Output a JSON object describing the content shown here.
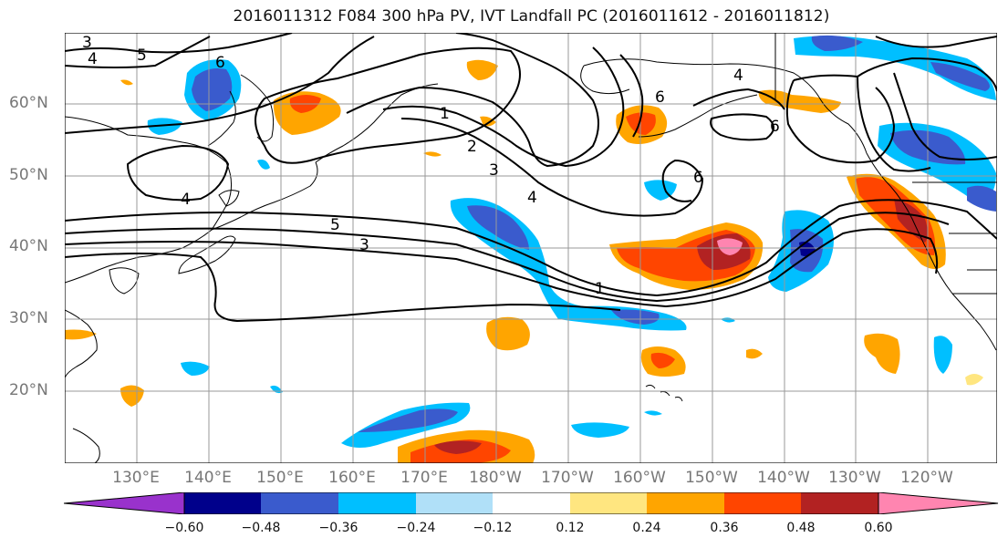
{
  "title": "2016011312 F084 300 hPa PV, IVT Landfall PC (2016011612 - 2016011812)",
  "lat_labels": [
    "60°N",
    "50°N",
    "40°N",
    "30°N",
    "20°N"
  ],
  "lon_labels": [
    "130°E",
    "140°E",
    "150°E",
    "160°E",
    "170°E",
    "180°W",
    "170°W",
    "160°W",
    "150°W",
    "140°W",
    "130°W",
    "120°W"
  ],
  "contour_labels": [
    "3",
    "4",
    "5",
    "6",
    "1",
    "2",
    "3",
    "4",
    "5",
    "3",
    "4",
    "6",
    "4",
    "6",
    "6",
    "1"
  ],
  "colorbar": {
    "ticks": [
      "−0.60",
      "−0.48",
      "−0.36",
      "−0.24",
      "−0.12",
      "0.12",
      "0.24",
      "0.36",
      "0.48",
      "0.60"
    ],
    "colors": [
      "#9932cc",
      "#00008b",
      "#3a5bcd",
      "#00bfff",
      "#b0e0f8",
      "#ffffff",
      "#ffe680",
      "#ffa500",
      "#ff4500",
      "#b22222",
      "#ff85b0",
      "#ff85b0"
    ]
  },
  "map_fill_colors": {
    "pos_low": "#ffe680",
    "pos_mid": "#ffa500",
    "pos_high": "#ff4500",
    "pos_higher": "#b22222",
    "pos_max": "#ff85b0",
    "neg_low": "#b0e0f8",
    "neg_mid": "#00bfff",
    "neg_high": "#3a5bcd",
    "neg_max": "#00008b"
  }
}
